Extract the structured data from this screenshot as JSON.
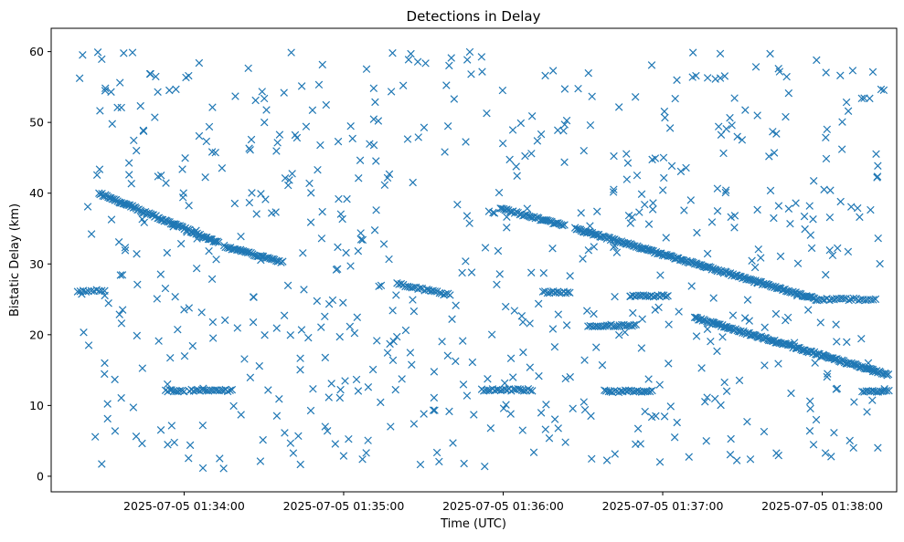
{
  "chart_data": {
    "type": "scatter",
    "title": "Detections in Delay",
    "xlabel": "Time (UTC)",
    "ylabel": "Bistatic Delay (km)",
    "x_unit": "UTC datetime",
    "xlim": [
      "2025-07-05 01:33:10",
      "2025-07-05 01:38:28"
    ],
    "ylim": [
      -2.2,
      63.3
    ],
    "x_ticks": [
      "2025-07-05 01:34:00",
      "2025-07-05 01:35:00",
      "2025-07-05 01:36:00",
      "2025-07-05 01:37:00",
      "2025-07-05 01:38:00"
    ],
    "y_ticks": [
      0,
      10,
      20,
      30,
      40,
      50,
      60
    ],
    "marker": "x",
    "marker_color": "#1f77b4",
    "grid": false,
    "legend": "none",
    "series": [
      {
        "marker": "x",
        "color": "#1f77b4",
        "tracks": [
          {
            "start": [
              "2025-07-05 01:33:28",
              40.0
            ],
            "end": [
              "2025-07-05 01:34:13",
              33.0
            ],
            "spacing_seconds": 0.5
          },
          {
            "start": [
              "2025-07-05 01:34:15",
              32.5
            ],
            "end": [
              "2025-07-05 01:34:37",
              30.2
            ],
            "spacing_seconds": 0.6
          },
          {
            "start": [
              "2025-07-05 01:35:59",
              37.8
            ],
            "end": [
              "2025-07-05 01:36:23",
              35.4
            ],
            "spacing_seconds": 0.6
          },
          {
            "start": [
              "2025-07-05 01:36:27",
              35.0
            ],
            "end": [
              "2025-07-05 01:37:58",
              25.0
            ],
            "spacing_seconds": 0.5
          },
          {
            "start": [
              "2025-07-05 01:37:12",
              22.4
            ],
            "end": [
              "2025-07-05 01:38:25",
              14.3
            ],
            "spacing_seconds": 0.5
          },
          {
            "start": [
              "2025-07-05 01:33:20",
              26.2
            ],
            "end": [
              "2025-07-05 01:33:30",
              26.2
            ],
            "spacing_seconds": 1.0
          },
          {
            "start": [
              "2025-07-05 01:35:20",
              27.2
            ],
            "end": [
              "2025-07-05 01:35:40",
              25.6
            ],
            "spacing_seconds": 0.8
          },
          {
            "start": [
              "2025-07-05 01:36:15",
              26.0
            ],
            "end": [
              "2025-07-05 01:36:25",
              26.0
            ],
            "spacing_seconds": 0.8
          },
          {
            "start": [
              "2025-07-05 01:36:48",
              25.5
            ],
            "end": [
              "2025-07-05 01:37:02",
              25.5
            ],
            "spacing_seconds": 0.8
          },
          {
            "start": [
              "2025-07-05 01:36:32",
              21.3
            ],
            "end": [
              "2025-07-05 01:36:50",
              21.3
            ],
            "spacing_seconds": 0.8
          },
          {
            "start": [
              "2025-07-05 01:37:59",
              25.0
            ],
            "end": [
              "2025-07-05 01:38:20",
              25.0
            ],
            "spacing_seconds": 0.9
          },
          {
            "start": [
              "2025-07-05 01:33:53",
              12.1
            ],
            "end": [
              "2025-07-05 01:34:00",
              12.1
            ],
            "spacing_seconds": 0.8
          },
          {
            "start": [
              "2025-07-05 01:34:02",
              12.1
            ],
            "end": [
              "2025-07-05 01:34:18",
              12.1
            ],
            "spacing_seconds": 0.8
          },
          {
            "start": [
              "2025-07-05 01:35:52",
              12.2
            ],
            "end": [
              "2025-07-05 01:36:11",
              12.2
            ],
            "spacing_seconds": 0.8
          },
          {
            "start": [
              "2025-07-05 01:36:38",
              12.0
            ],
            "end": [
              "2025-07-05 01:36:56",
              12.0
            ],
            "spacing_seconds": 0.8
          },
          {
            "start": [
              "2025-07-05 01:38:15",
              12.0
            ],
            "end": [
              "2025-07-05 01:38:25",
              12.0
            ],
            "spacing_seconds": 0.8
          }
        ],
        "scattered_points": {
          "count": 650,
          "x_range": [
            "2025-07-05 01:33:20",
            "2025-07-05 01:38:25"
          ],
          "y_range": [
            1.0,
            60.0
          ],
          "distribution": "approximately uniform"
        }
      }
    ]
  }
}
